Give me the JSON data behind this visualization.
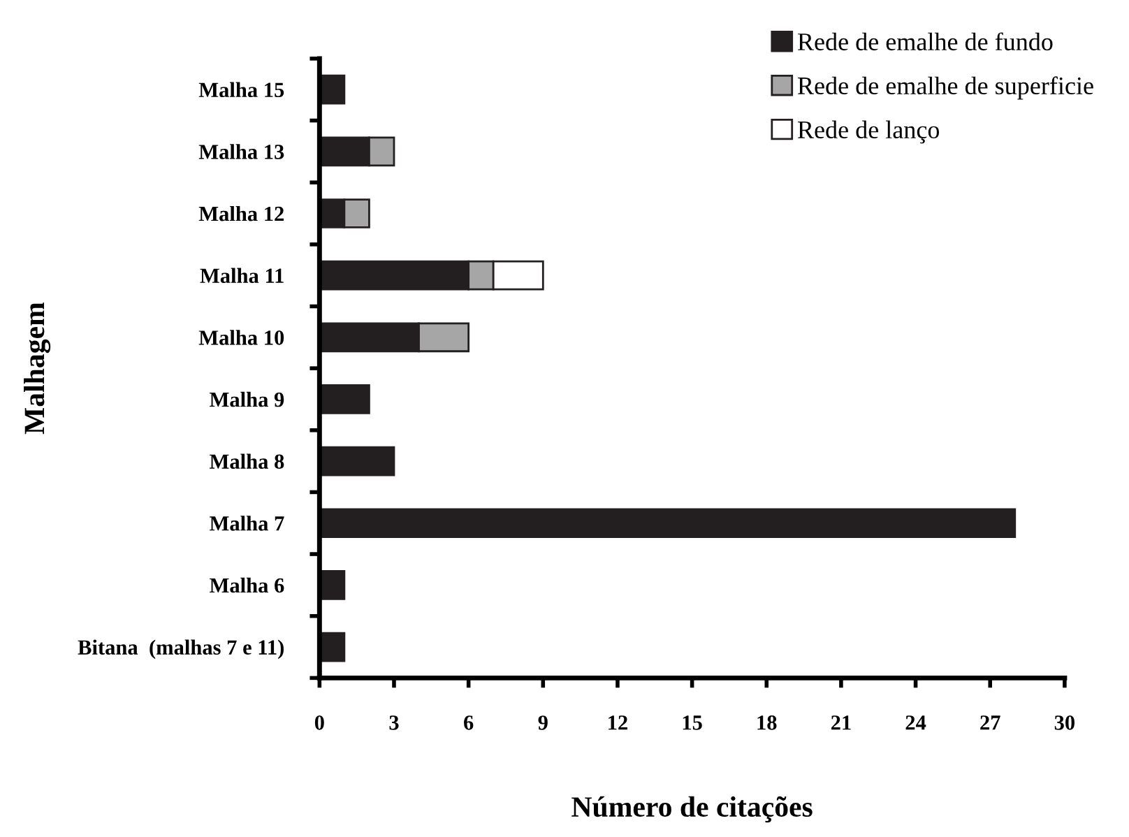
{
  "chart_data": {
    "type": "bar",
    "orientation": "horizontal",
    "stacked": true,
    "xlabel": "Número de citações",
    "ylabel": "Malhagem",
    "categories": [
      "Malha 15",
      "Malha 13",
      "Malha 12",
      "Malha 11",
      "Malha 10",
      "Malha 9",
      "Malha 8",
      "Malha 7",
      "Malha 6",
      "Bitana  (malhas 7 e 11)"
    ],
    "series": [
      {
        "name": "Rede de emalhe de fundo",
        "color": "#231f20",
        "values": [
          1,
          2,
          1,
          6,
          4,
          2,
          3,
          28,
          1,
          1
        ]
      },
      {
        "name": "Rede de emalhe de superficie",
        "color": "#a6a6a6",
        "values": [
          null,
          1,
          1,
          1,
          2,
          null,
          null,
          null,
          null,
          null
        ]
      },
      {
        "name": "Rede de lanço",
        "color": "#ffffff",
        "values": [
          null,
          null,
          null,
          2,
          null,
          null,
          null,
          null,
          null,
          null
        ]
      }
    ],
    "xlim": [
      0,
      30
    ],
    "xticks": [
      0,
      3,
      6,
      9,
      12,
      15,
      18,
      21,
      24,
      27,
      30
    ],
    "grid": false,
    "legend": "top right"
  }
}
